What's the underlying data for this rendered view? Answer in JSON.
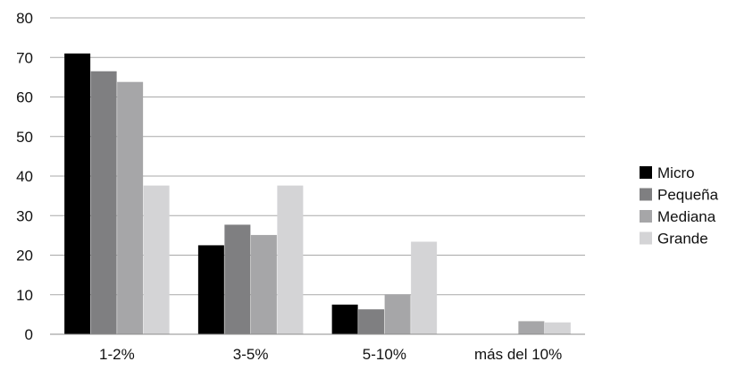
{
  "chart_data": {
    "type": "bar",
    "categories": [
      "1-2%",
      "3-5%",
      "5-10%",
      "más del 10%"
    ],
    "series": [
      {
        "name": "Micro",
        "values": [
          71,
          22.5,
          7.5,
          0
        ],
        "color": "#000000"
      },
      {
        "name": "Pequeña",
        "values": [
          66.5,
          27.7,
          6.3,
          0
        ],
        "color": "#7f7f81"
      },
      {
        "name": "Mediana",
        "values": [
          63.8,
          25.1,
          10.1,
          3.3
        ],
        "color": "#a6a6a8"
      },
      {
        "name": "Grande",
        "values": [
          37.6,
          37.6,
          23.4,
          3.0
        ],
        "color": "#d4d4d6"
      }
    ],
    "ylim": [
      0,
      80
    ],
    "yticks": [
      0,
      10,
      20,
      30,
      40,
      50,
      60,
      70,
      80
    ],
    "grid": true,
    "legend_position": "right",
    "title": "",
    "xlabel": "",
    "ylabel": ""
  }
}
